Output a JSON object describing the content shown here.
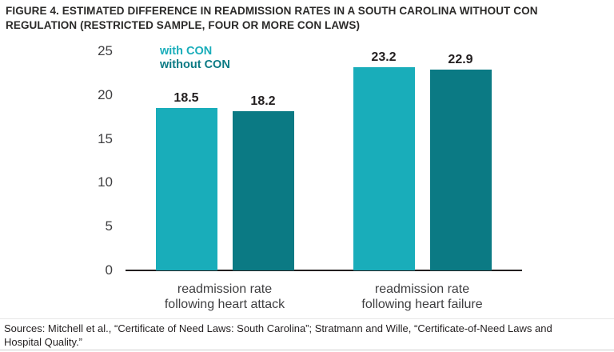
{
  "figure": {
    "title": "FIGURE 4. ESTIMATED DIFFERENCE IN READMISSION RATES IN A SOUTH CAROLINA WITHOUT CON\nREGULATION (RESTRICTED SAMPLE, FOUR OR MORE CON LAWS)",
    "source_note": "Sources: Mitchell et al., “Certificate of Need Laws: South Carolina”; Stratmann and Wille, “Certificate-of-Need Laws and\nHospital Quality.”"
  },
  "colors": {
    "with_con": "#19ADBA",
    "without_con": "#0B7A84",
    "axis": "#231F20",
    "tick_text": "#3F3F41"
  },
  "chart_data": {
    "type": "bar",
    "title": "FIGURE 4. ESTIMATED DIFFERENCE IN READMISSION RATES IN A SOUTH CAROLINA WITHOUT CON REGULATION (RESTRICTED SAMPLE, FOUR OR MORE CON LAWS)",
    "categories": [
      "readmission rate\nfollowing heart attack",
      "readmission rate\nfollowing heart failure"
    ],
    "series": [
      {
        "name": "with CON",
        "color": "#19ADBA",
        "values": [
          18.5,
          23.2
        ]
      },
      {
        "name": "without CON",
        "color": "#0B7A84",
        "values": [
          18.2,
          22.9
        ]
      }
    ],
    "value_labels": [
      "18.5",
      "18.2",
      "23.2",
      "22.9"
    ],
    "xlabel": "",
    "ylabel": "",
    "ylim": [
      0,
      25
    ],
    "yticks": [
      0,
      5,
      10,
      15,
      20,
      25
    ],
    "grid": false,
    "legend_position": "top-left-inside-plot"
  }
}
